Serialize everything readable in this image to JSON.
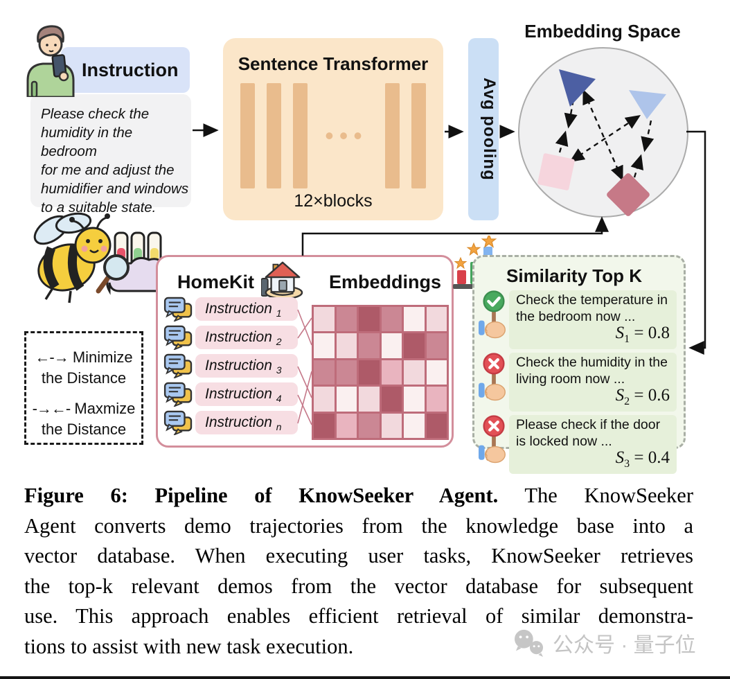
{
  "instruction_panel": {
    "header": "Instruction",
    "body_lines": [
      "Please check the",
      "humidity in the bedroom",
      "for me and adjust the",
      "humidifier and windows",
      "to a suitable state."
    ]
  },
  "transformer": {
    "title": "Sentence Transformer",
    "dots": "•••",
    "blocks_label": "12×blocks"
  },
  "pooling": {
    "label": "Avg pooling"
  },
  "embedding_space": {
    "title": "Embedding Space"
  },
  "legend": {
    "items": [
      {
        "symbol": "←-→",
        "line1": "Minimize",
        "line2": "the Distance"
      },
      {
        "symbol": "-→←-",
        "line1": "Maxmize",
        "line2": "the Distance"
      }
    ]
  },
  "homekit": {
    "title": "HomeKit",
    "embeddings_title": "Embeddings",
    "instruction_label": "Instruction",
    "instruction_subs": [
      "1",
      "2",
      "3",
      "4",
      "n"
    ],
    "heatmap": {
      "palette": [
        "#FAF0F0",
        "#F2D9DD",
        "#E9B4BF",
        "#CB8794",
        "#AE5A68"
      ],
      "levels": [
        [
          1,
          3,
          4,
          3,
          0,
          1
        ],
        [
          0,
          1,
          3,
          0,
          4,
          3
        ],
        [
          3,
          3,
          4,
          2,
          1,
          0
        ],
        [
          1,
          0,
          1,
          4,
          0,
          2
        ],
        [
          4,
          2,
          3,
          1,
          0,
          4
        ]
      ]
    }
  },
  "similarity": {
    "title": "Similarity Top K",
    "items": [
      {
        "status": "check",
        "text": "Check the temperature in the bedroom now ...",
        "score_var": "S",
        "score_sub": "1",
        "score_eq": " = 0.8"
      },
      {
        "status": "cross",
        "text": "Check the humidity in the living room now ...",
        "score_var": "S",
        "score_sub": "2",
        "score_eq": " = 0.6"
      },
      {
        "status": "cross",
        "text": "Please check if the door is locked now ...",
        "score_var": "S",
        "score_sub": "3",
        "score_eq": " = 0.4"
      }
    ]
  },
  "caption": {
    "lines": [
      {
        "bold": "Figure 6: Pipeline of KnowSeeker Agent.",
        "text": " The KnowSeeker"
      },
      {
        "bold": "",
        "text": "Agent converts demo trajectories from the knowledge base into a"
      },
      {
        "bold": "",
        "text": "vector database. When executing user tasks, KnowSeeker retrieves"
      },
      {
        "bold": "",
        "text": "the top-k relevant demos from the vector database for subsequent"
      },
      {
        "bold": "",
        "text": "use. This approach enables efficient retrieval of similar demonstra-"
      },
      {
        "bold": "",
        "text": "tions to assist with new task execution."
      }
    ]
  },
  "watermark": {
    "text": "公众号 · 量子位"
  },
  "colors": {
    "instruction_header_bg": "#D9E3F8",
    "instruction_body_bg": "#F2F2F3",
    "transformer_bg": "#FBE6C9",
    "transformer_bar": "#E9BC8D",
    "pooling_bg": "#CBDFF5",
    "circle_bg": "#F0F0F1",
    "triangle_dark": "#4C5FA3",
    "triangle_light": "#AEC4EA",
    "square_pink": "#F6D5DD",
    "diamond_red": "#C67987",
    "homekit_border": "#D38E9B",
    "pill_bg": "#F7DEE3",
    "similarity_bg": "#F2F7EB",
    "similarity_item_bg": "#E6F0DA",
    "check_green": "#49A95F",
    "cross_red": "#E25056"
  }
}
